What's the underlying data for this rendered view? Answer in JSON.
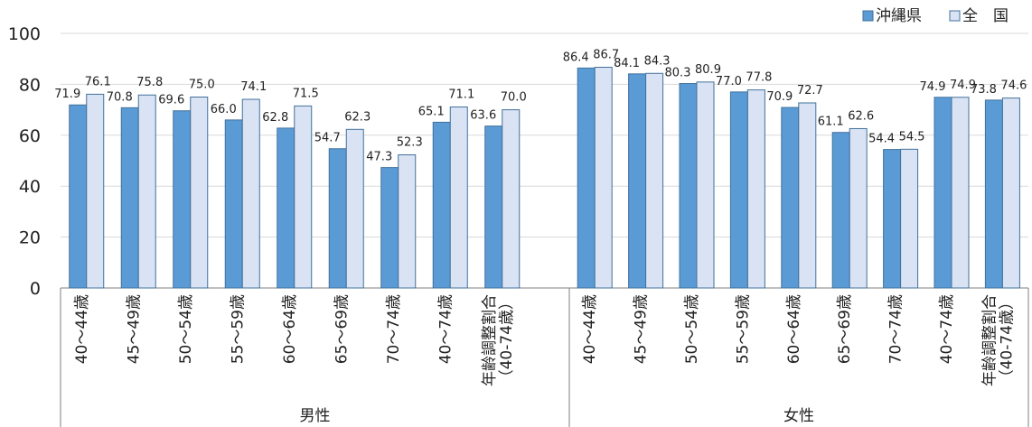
{
  "chart_data": {
    "type": "bar",
    "title": "",
    "xlabel": "",
    "ylabel": "",
    "ylim": [
      0,
      100
    ],
    "yticks": [
      0,
      20,
      40,
      60,
      80,
      100
    ],
    "grid": true,
    "legend_position": "top-right",
    "groups": [
      {
        "label": "男性",
        "categories": [
          "40～44歳",
          "45～49歳",
          "50～54歳",
          "55～59歳",
          "60～64歳",
          "65～69歳",
          "70～74歳",
          "40～74歳",
          "年齢調整割合（40-74歳）"
        ],
        "series": [
          {
            "name": "沖縄県",
            "values": [
              71.9,
              70.8,
              69.6,
              66.0,
              62.8,
              54.7,
              47.3,
              65.1,
              63.6
            ]
          },
          {
            "name": "全　国",
            "values": [
              76.1,
              75.8,
              75.0,
              74.1,
              71.5,
              62.3,
              52.3,
              71.1,
              70.0
            ]
          }
        ]
      },
      {
        "label": "女性",
        "categories": [
          "40～44歳",
          "45～49歳",
          "50～54歳",
          "55～59歳",
          "60～64歳",
          "65～69歳",
          "70～74歳",
          "40～74歳",
          "年齢調整割合（40-74歳）"
        ],
        "series": [
          {
            "name": "沖縄県",
            "values": [
              86.4,
              84.1,
              80.3,
              77.0,
              70.9,
              61.1,
              54.4,
              74.9,
              73.8
            ]
          },
          {
            "name": "全　国",
            "values": [
              86.7,
              84.3,
              80.9,
              77.8,
              72.7,
              62.6,
              54.5,
              74.9,
              74.6
            ]
          }
        ]
      }
    ],
    "colors": {
      "沖縄県": "#5b9bd5",
      "全　国": "#dae3f3",
      "border_prefecture": "#41719c",
      "border_national": "#41719c",
      "grid": "#d9d9d9",
      "axis": "#7f7f7f"
    }
  }
}
